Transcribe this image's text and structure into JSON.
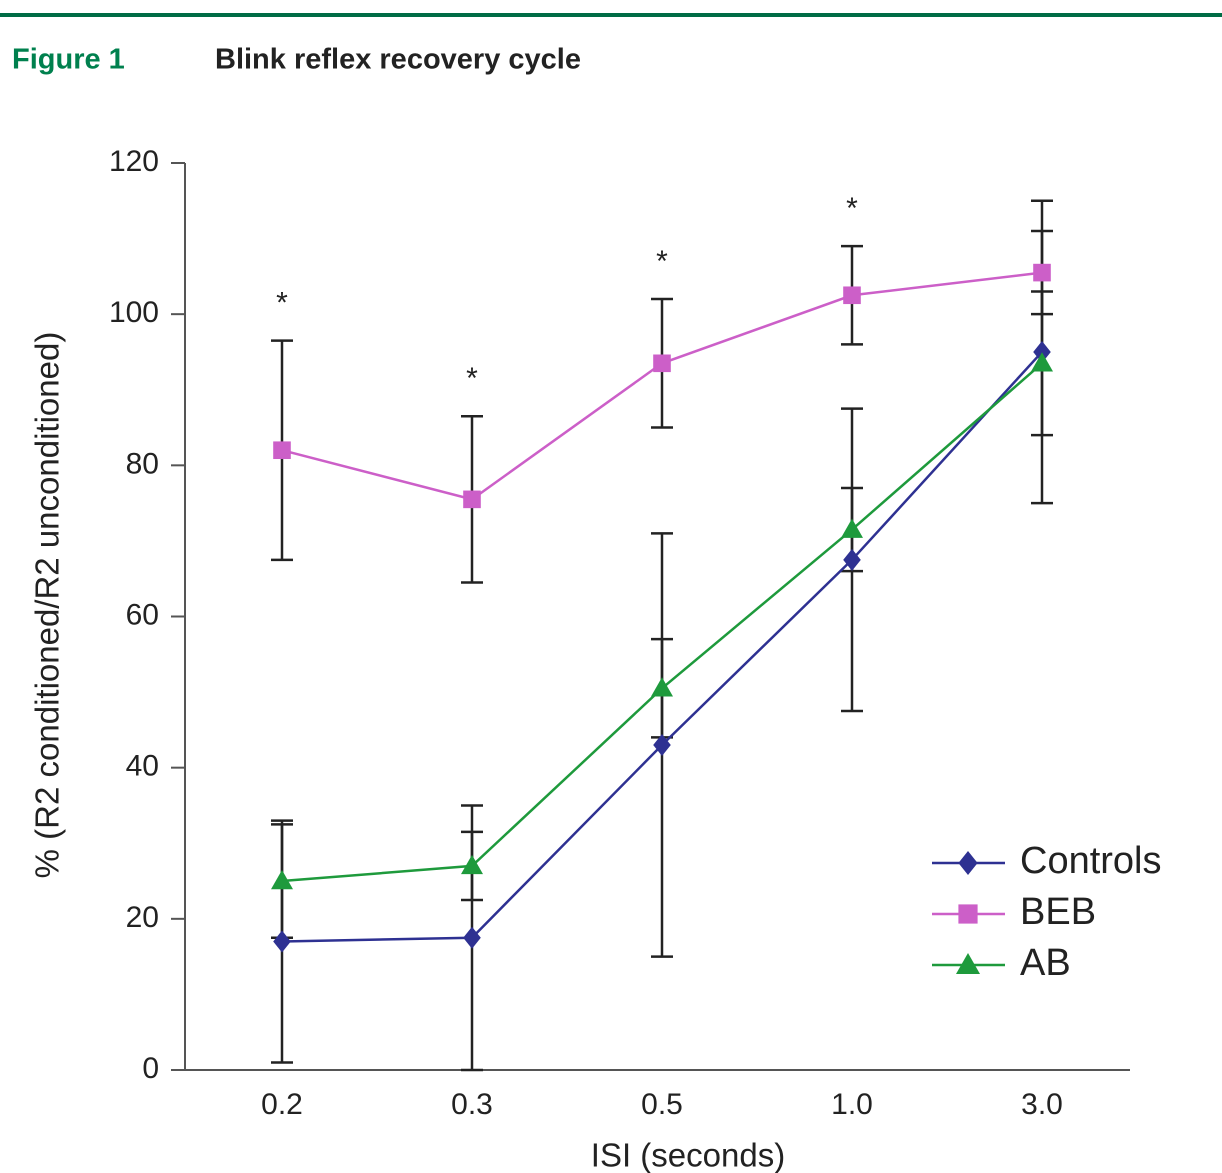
{
  "figure_label": "Figure 1",
  "chart_data": {
    "type": "line",
    "title": "Blink reflex recovery cycle",
    "xlabel": "ISI (seconds)",
    "ylabel": "% (R2 conditioned/R2 unconditioned)",
    "categories": [
      "0.2",
      "0.3",
      "0.5",
      "1.0",
      "3.0"
    ],
    "ylim": [
      0,
      120
    ],
    "yticks": [
      0,
      20,
      40,
      60,
      80,
      100,
      120
    ],
    "grid": false,
    "legend": "lower right",
    "annotations": [
      "*",
      "*",
      "*",
      "*",
      null
    ],
    "series": [
      {
        "name": "Controls",
        "color": "#2e3192",
        "marker": "diamond",
        "values": [
          17,
          17.5,
          43,
          67.5,
          95
        ],
        "errors": [
          16,
          17.5,
          28,
          20,
          20
        ]
      },
      {
        "name": "BEB",
        "color": "#cc5fc8",
        "marker": "square",
        "values": [
          82,
          75.5,
          93.5,
          102.5,
          105.5
        ],
        "errors": [
          14.5,
          11,
          8.5,
          6.5,
          5.5
        ]
      },
      {
        "name": "AB",
        "color": "#1e9a3c",
        "marker": "triangle",
        "values": [
          25,
          27,
          50.5,
          71.5,
          93.5
        ],
        "errors": [
          7.5,
          4.5,
          6.5,
          5.5,
          9.5
        ]
      }
    ]
  }
}
